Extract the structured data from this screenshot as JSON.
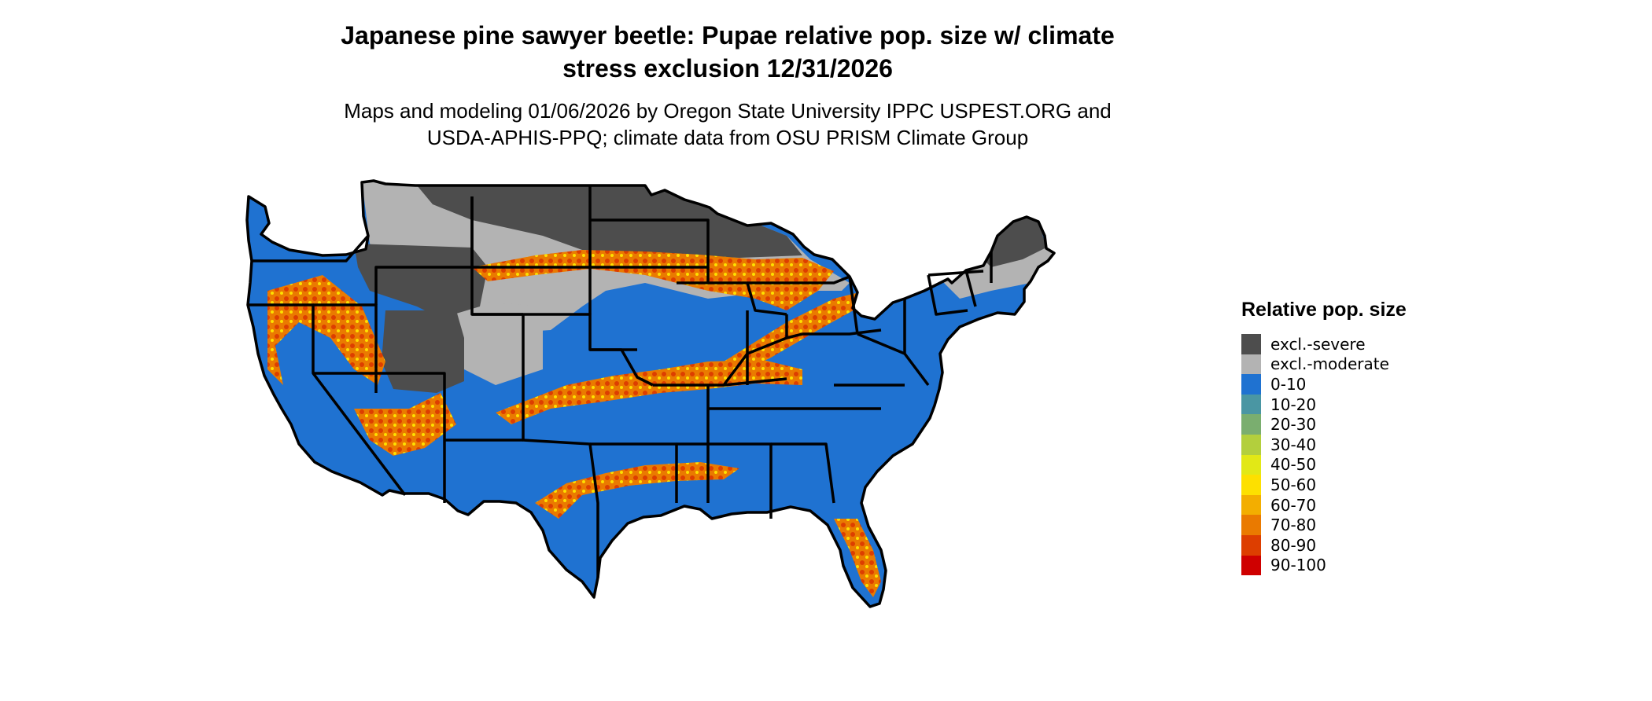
{
  "title": {
    "line1": "Japanese pine sawyer beetle: Pupae relative pop. size w/ climate",
    "line2": "stress exclusion 12/31/2026"
  },
  "subtitle": {
    "line1": "Maps and modeling 01/06/2026 by Oregon State University IPPC USPEST.ORG and",
    "line2": "USDA-APHIS-PPQ; climate data from OSU PRISM Climate Group"
  },
  "legend": {
    "title": "Relative pop. size",
    "items": [
      {
        "label": "excl.-severe",
        "color": "#4d4d4d"
      },
      {
        "label": "excl.-moderate",
        "color": "#b3b3b3"
      },
      {
        "label": "0-10",
        "color": "#1f72d1"
      },
      {
        "label": "10-20",
        "color": "#4a96a3"
      },
      {
        "label": "20-30",
        "color": "#7aae6f"
      },
      {
        "label": "30-40",
        "color": "#b3cf3d"
      },
      {
        "label": "40-50",
        "color": "#e2e816"
      },
      {
        "label": "50-60",
        "color": "#fde000"
      },
      {
        "label": "60-70",
        "color": "#f3ae00"
      },
      {
        "label": "70-80",
        "color": "#ea7a00"
      },
      {
        "label": "80-90",
        "color": "#dd3e00"
      },
      {
        "label": "90-100",
        "color": "#cf0000"
      }
    ]
  }
}
